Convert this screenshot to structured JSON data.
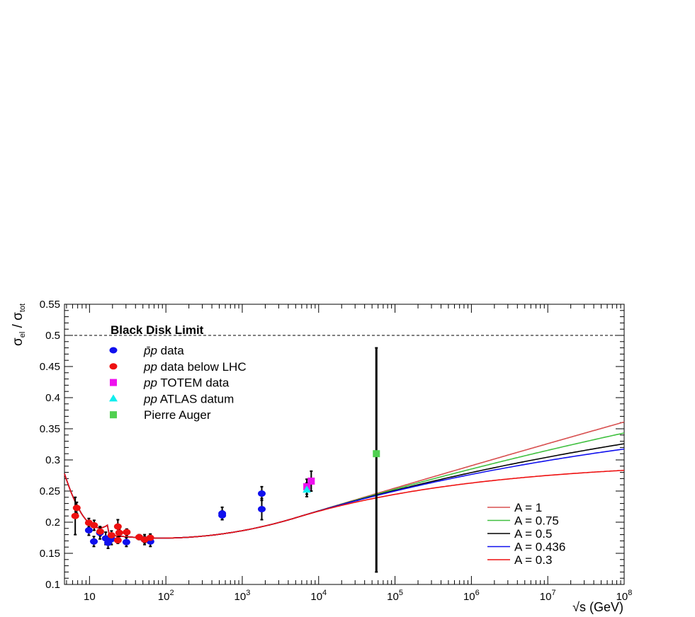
{
  "chart_data": {
    "type": "scatter",
    "title": "",
    "xlabel": "√s (GeV)",
    "ylabel_main": "σ",
    "ylabel_sub1": "el",
    "ylabel_sep": " / ",
    "ylabel_sub2": "tot",
    "x_scale": "log",
    "xlim": [
      4.7,
      100000000
    ],
    "ylim": [
      0.1,
      0.55
    ],
    "x_tick_labels": [
      {
        "value": 10,
        "base": "10",
        "exp": ""
      },
      {
        "value": 100,
        "base": "10",
        "exp": "2"
      },
      {
        "value": 1000,
        "base": "10",
        "exp": "3"
      },
      {
        "value": 10000,
        "base": "10",
        "exp": "4"
      },
      {
        "value": 100000,
        "base": "10",
        "exp": "5"
      },
      {
        "value": 1000000,
        "base": "10",
        "exp": "6"
      },
      {
        "value": 10000000,
        "base": "10",
        "exp": "7"
      },
      {
        "value": 100000000,
        "base": "10",
        "exp": "8"
      }
    ],
    "y_ticks": [
      0.1,
      0.15,
      0.2,
      0.25,
      0.3,
      0.35,
      0.4,
      0.45,
      0.5,
      0.55
    ],
    "y_tick_labels": [
      "0.1",
      "0.15",
      "0.2",
      "0.25",
      "0.3",
      "0.35",
      "0.4",
      "0.45",
      "0.5",
      "0.55"
    ],
    "black_disk_limit": {
      "label": "Black Disk Limit",
      "y": 0.5
    },
    "data_series": [
      {
        "legend_prefix": "p̄p",
        "legend_rest": " data",
        "marker": "circle",
        "color": "#1010ee",
        "points": [
          {
            "x": 9.8,
            "y": 0.187,
            "err": 0.008
          },
          {
            "x": 11.4,
            "y": 0.169,
            "err": 0.008
          },
          {
            "x": 13.7,
            "y": 0.183,
            "err": 0.01
          },
          {
            "x": 16.3,
            "y": 0.174,
            "err": 0.01
          },
          {
            "x": 17.5,
            "y": 0.167,
            "err": 0.009
          },
          {
            "x": 19.4,
            "y": 0.173,
            "err": 0.009
          },
          {
            "x": 30.4,
            "y": 0.168,
            "err": 0.007
          },
          {
            "x": 52.6,
            "y": 0.172,
            "err": 0.008
          },
          {
            "x": 62.7,
            "y": 0.169,
            "err": 0.008
          },
          {
            "x": 546,
            "y": 0.214,
            "err": 0.01
          },
          {
            "x": 546,
            "y": 0.211,
            "err": 0.007
          },
          {
            "x": 1800,
            "y": 0.246,
            "err": 0.011
          },
          {
            "x": 1800,
            "y": 0.221,
            "err": 0.017
          }
        ]
      },
      {
        "legend_prefix": "pp",
        "legend_rest": " data below LHC",
        "marker": "circle",
        "color": "#ee1010",
        "points": [
          {
            "x": 6.5,
            "y": 0.21,
            "err": 0.03
          },
          {
            "x": 6.8,
            "y": 0.223,
            "err": 0.009
          },
          {
            "x": 9.8,
            "y": 0.199,
            "err": 0.007
          },
          {
            "x": 11.5,
            "y": 0.195,
            "err": 0.008
          },
          {
            "x": 13.8,
            "y": 0.185,
            "err": 0.007
          },
          {
            "x": 19.4,
            "y": 0.179,
            "err": 0.007
          },
          {
            "x": 23.5,
            "y": 0.193,
            "err": 0.011
          },
          {
            "x": 23.5,
            "y": 0.171,
            "err": 0.005
          },
          {
            "x": 24.5,
            "y": 0.183,
            "err": 0.006
          },
          {
            "x": 30.7,
            "y": 0.184,
            "err": 0.005
          },
          {
            "x": 44.7,
            "y": 0.176,
            "err": 0.004
          },
          {
            "x": 52.8,
            "y": 0.172,
            "err": 0.005
          },
          {
            "x": 62.5,
            "y": 0.175,
            "err": 0.006
          }
        ]
      },
      {
        "legend_prefix": "pp",
        "legend_rest": " TOTEM data",
        "marker": "square",
        "color": "#ee10ee",
        "points": [
          {
            "x": 7000,
            "y": 0.257,
            "err": 0.012
          },
          {
            "x": 8000,
            "y": 0.266,
            "err": 0.016
          }
        ]
      },
      {
        "legend_prefix": "pp",
        "legend_rest": " ATLAS datum",
        "marker": "triangle",
        "color": "#10eeee",
        "points": [
          {
            "x": 7000,
            "y": 0.252,
            "err": 0.011
          }
        ]
      },
      {
        "legend_prefix": "",
        "legend_rest": "Pierre Auger",
        "marker": "square",
        "color": "#50d050",
        "points": [
          {
            "x": 57000,
            "y": 0.31,
            "err_low": 0.19,
            "err_high": 0.17
          }
        ]
      }
    ],
    "model_curves": [
      {
        "name": "A = 1",
        "color": "#d85050",
        "asymptote": 0.93
      },
      {
        "name": "A = 0.75",
        "color": "#40c040",
        "asymptote": 0.7
      },
      {
        "name": "A = 0.5",
        "color": "#000000",
        "asymptote": 0.465
      },
      {
        "name": "A = 0.436",
        "color": "#1010ee",
        "asymptote": 0.41
      },
      {
        "name": "A = 0.3",
        "color": "#ee1010",
        "asymptote": 0.3
      }
    ]
  }
}
